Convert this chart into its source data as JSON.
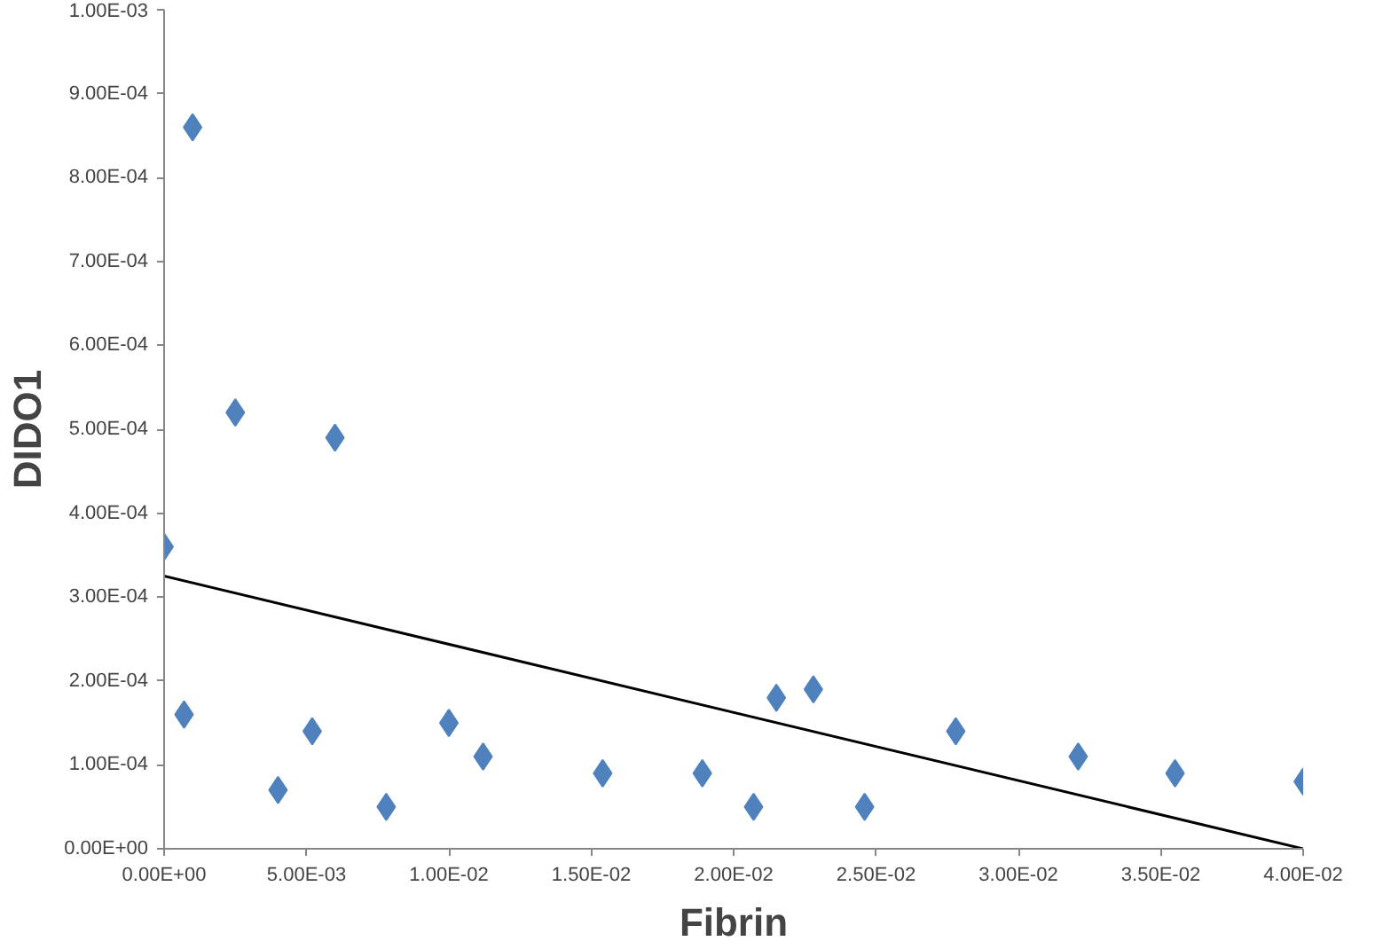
{
  "chart_data": {
    "type": "scatter",
    "xlabel": "Fibrin",
    "ylabel": "DIDO1",
    "xlim": [
      0,
      0.04
    ],
    "ylim": [
      0,
      0.001
    ],
    "xticks": [
      {
        "value": 0,
        "label": "0.00E+00"
      },
      {
        "value": 0.005,
        "label": "5.00E-03"
      },
      {
        "value": 0.01,
        "label": "1.00E-02"
      },
      {
        "value": 0.015,
        "label": "1.50E-02"
      },
      {
        "value": 0.02,
        "label": "2.00E-02"
      },
      {
        "value": 0.025,
        "label": "2.50E-02"
      },
      {
        "value": 0.03,
        "label": "3.00E-02"
      },
      {
        "value": 0.035,
        "label": "3.50E-02"
      },
      {
        "value": 0.04,
        "label": "4.00E-02"
      }
    ],
    "yticks": [
      {
        "value": 0,
        "label": "0.00E+00"
      },
      {
        "value": 0.0001,
        "label": "1.00E-04"
      },
      {
        "value": 0.0002,
        "label": "2.00E-04"
      },
      {
        "value": 0.0003,
        "label": "3.00E-04"
      },
      {
        "value": 0.0004,
        "label": "4.00E-04"
      },
      {
        "value": 0.0005,
        "label": "5.00E-04"
      },
      {
        "value": 0.0006,
        "label": "6.00E-04"
      },
      {
        "value": 0.0007,
        "label": "7.00E-04"
      },
      {
        "value": 0.0008,
        "label": "8.00E-04"
      },
      {
        "value": 0.0009,
        "label": "9.00E-04"
      },
      {
        "value": 0.001,
        "label": "1.00E-03"
      }
    ],
    "grid": false,
    "series": [
      {
        "color": "#4f81bd",
        "marker": "diamond",
        "x": [
          0,
          0.001,
          0.0007,
          0.0025,
          0.004,
          0.0052,
          0.006,
          0.0078,
          0.01,
          0.0112,
          0.0154,
          0.0189,
          0.0207,
          0.0215,
          0.0228,
          0.0246,
          0.0278,
          0.0321,
          0.0355,
          0.04
        ],
        "values": [
          0.00036,
          0.00086,
          0.00016,
          0.00052,
          7e-05,
          0.00014,
          0.00049,
          5e-05,
          0.00015,
          0.00011,
          9e-05,
          9e-05,
          5e-05,
          0.00018,
          0.00019,
          5e-05,
          0.00014,
          0.00011,
          9e-05,
          8e-05
        ]
      },
      {
        "type": "line",
        "color": "#000000",
        "x": [
          0,
          0.04
        ],
        "values": [
          0.000325,
          0
        ]
      }
    ]
  }
}
